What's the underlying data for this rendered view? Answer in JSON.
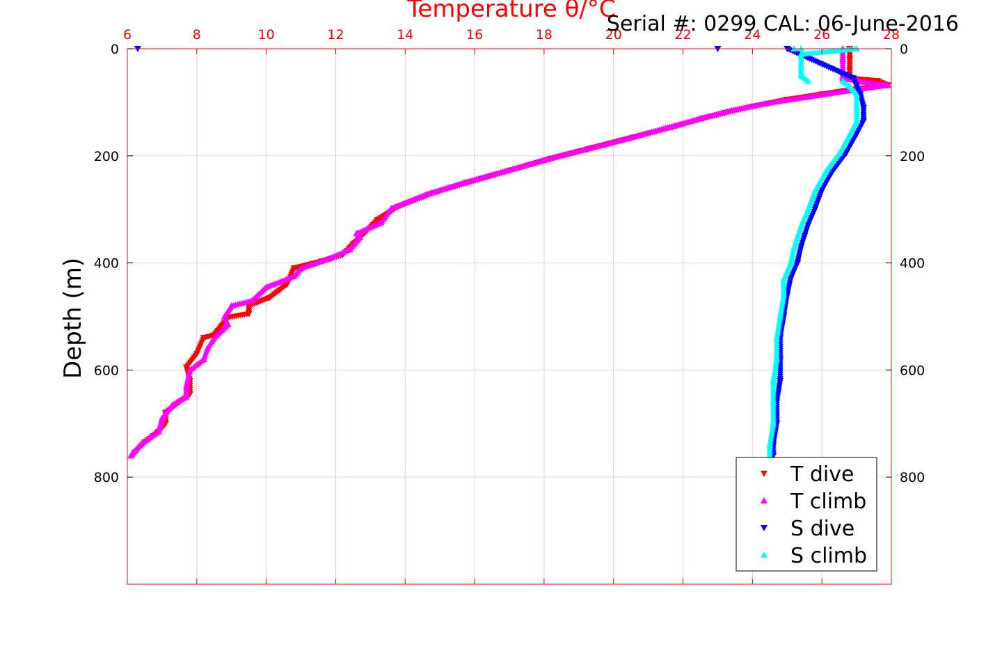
{
  "chart_data": {
    "type": "scatter",
    "title": "Temperature θ/°C",
    "subtitle": "Serial #: 0299 CAL: 06-June-2016",
    "ylabel": "Depth (m)",
    "xlim": [
      6,
      28
    ],
    "ylim": [
      0,
      1000
    ],
    "y_reversed": true,
    "x_ticks": [
      "6",
      "8",
      "10",
      "12",
      "14",
      "16",
      "18",
      "20",
      "22",
      "24",
      "26",
      "28"
    ],
    "y_ticks": [
      "0",
      "200",
      "400",
      "600",
      "800"
    ],
    "grid": true,
    "legend_position": "bottom-right",
    "series": [
      {
        "name": "T dive",
        "marker": "triangle-down",
        "color": "#ff0000",
        "points": [
          [
            26.8,
            0
          ],
          [
            26.8,
            20
          ],
          [
            26.8,
            40
          ],
          [
            26.8,
            55
          ],
          [
            27.6,
            60
          ],
          [
            27.9,
            68
          ],
          [
            27.0,
            75
          ],
          [
            26.0,
            85
          ],
          [
            25.0,
            95
          ],
          [
            24.0,
            108
          ],
          [
            23.2,
            120
          ],
          [
            22.6,
            130
          ],
          [
            21.8,
            145
          ],
          [
            20.6,
            165
          ],
          [
            19.4,
            185
          ],
          [
            18.2,
            205
          ],
          [
            17.0,
            228
          ],
          [
            15.8,
            250
          ],
          [
            14.8,
            270
          ],
          [
            13.8,
            295
          ],
          [
            13.2,
            320
          ],
          [
            12.9,
            340
          ],
          [
            12.5,
            365
          ],
          [
            12.2,
            385
          ],
          [
            11.6,
            397
          ],
          [
            10.8,
            410
          ],
          [
            10.6,
            440
          ],
          [
            10.1,
            465
          ],
          [
            9.5,
            480
          ],
          [
            9.5,
            495
          ],
          [
            8.9,
            502
          ],
          [
            8.5,
            535
          ],
          [
            8.2,
            540
          ],
          [
            8.0,
            570
          ],
          [
            7.7,
            595
          ],
          [
            7.8,
            620
          ],
          [
            7.8,
            645
          ],
          [
            7.5,
            660
          ],
          [
            7.1,
            680
          ],
          [
            7.1,
            700
          ],
          [
            6.9,
            715
          ],
          [
            6.5,
            735
          ],
          [
            6.2,
            755
          ]
        ]
      },
      {
        "name": "T climb",
        "marker": "triangle-up",
        "color": "#ff00ff",
        "points": [
          [
            26.6,
            0
          ],
          [
            26.6,
            20
          ],
          [
            26.6,
            40
          ],
          [
            26.6,
            55
          ],
          [
            27.2,
            62
          ],
          [
            27.9,
            68
          ],
          [
            26.8,
            78
          ],
          [
            25.6,
            90
          ],
          [
            24.4,
            102
          ],
          [
            23.4,
            115
          ],
          [
            22.5,
            130
          ],
          [
            21.5,
            148
          ],
          [
            20.4,
            168
          ],
          [
            19.2,
            188
          ],
          [
            18.0,
            208
          ],
          [
            16.8,
            230
          ],
          [
            15.7,
            250
          ],
          [
            14.6,
            272
          ],
          [
            13.6,
            298
          ],
          [
            13.3,
            325
          ],
          [
            12.6,
            345
          ],
          [
            12.7,
            352
          ],
          [
            12.4,
            375
          ],
          [
            11.8,
            392
          ],
          [
            11.0,
            410
          ],
          [
            10.8,
            425
          ],
          [
            10.0,
            445
          ],
          [
            9.6,
            470
          ],
          [
            9.0,
            480
          ],
          [
            8.8,
            500
          ],
          [
            8.9,
            515
          ],
          [
            8.5,
            540
          ],
          [
            8.3,
            560
          ],
          [
            8.2,
            580
          ],
          [
            7.8,
            600
          ],
          [
            7.7,
            630
          ],
          [
            7.7,
            650
          ],
          [
            7.3,
            665
          ],
          [
            7.0,
            690
          ],
          [
            6.9,
            715
          ],
          [
            6.4,
            738
          ],
          [
            6.1,
            760
          ]
        ]
      },
      {
        "name": "S dive",
        "marker": "triangle-down",
        "color": "#0000ff",
        "points": [
          [
            6.3,
            0
          ],
          [
            23.0,
            0
          ],
          [
            25.0,
            0
          ],
          [
            26.9,
            55
          ],
          [
            27.0,
            70
          ],
          [
            27.1,
            85
          ],
          [
            27.2,
            110
          ],
          [
            27.2,
            135
          ],
          [
            27.0,
            160
          ],
          [
            26.7,
            195
          ],
          [
            26.3,
            230
          ],
          [
            26.0,
            265
          ],
          [
            25.8,
            300
          ],
          [
            25.6,
            330
          ],
          [
            25.5,
            350
          ],
          [
            25.4,
            370
          ],
          [
            25.3,
            400
          ],
          [
            25.1,
            430
          ],
          [
            25.0,
            460
          ],
          [
            24.9,
            500
          ],
          [
            24.8,
            540
          ],
          [
            24.8,
            580
          ],
          [
            24.8,
            620
          ],
          [
            24.7,
            660
          ],
          [
            24.7,
            700
          ],
          [
            24.6,
            740
          ],
          [
            24.6,
            760
          ]
        ]
      },
      {
        "name": "S climb",
        "marker": "triangle-up",
        "color": "#00ffff",
        "points": [
          [
            25.2,
            0
          ],
          [
            25.4,
            0
          ],
          [
            27.0,
            0
          ],
          [
            25.4,
            10
          ],
          [
            25.4,
            30
          ],
          [
            25.4,
            50
          ],
          [
            25.6,
            60
          ],
          [
            26.6,
            60
          ],
          [
            26.8,
            70
          ],
          [
            27.0,
            85
          ],
          [
            27.0,
            110
          ],
          [
            27.0,
            135
          ],
          [
            26.8,
            160
          ],
          [
            26.5,
            195
          ],
          [
            26.1,
            230
          ],
          [
            25.8,
            265
          ],
          [
            25.6,
            300
          ],
          [
            25.4,
            330
          ],
          [
            25.3,
            350
          ],
          [
            25.2,
            370
          ],
          [
            25.1,
            400
          ],
          [
            24.9,
            430
          ],
          [
            24.9,
            460
          ],
          [
            24.8,
            500
          ],
          [
            24.7,
            540
          ],
          [
            24.7,
            580
          ],
          [
            24.6,
            620
          ],
          [
            24.6,
            660
          ],
          [
            24.6,
            700
          ],
          [
            24.5,
            740
          ],
          [
            24.5,
            760
          ]
        ]
      }
    ]
  }
}
